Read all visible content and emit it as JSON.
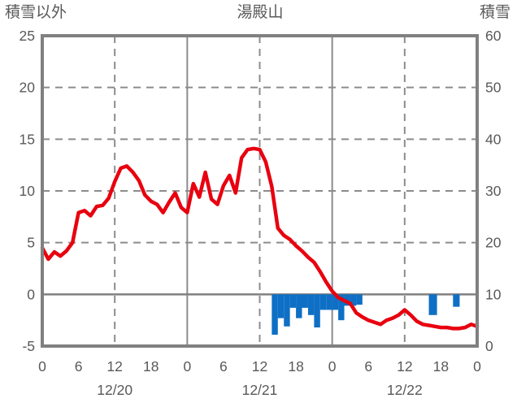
{
  "header": {
    "left_axis_title": "積雪以外",
    "chart_title": "湯殿山",
    "right_axis_title": "積雪"
  },
  "colors": {
    "temp_line": "#e8000f",
    "snow_bar": "#0e6fc5",
    "frame": "#808080",
    "grid": "#8c8c8c",
    "zero_line": "#808080",
    "text": "#595959"
  },
  "chart_data": {
    "type": "line+bar",
    "title": "湯殿山",
    "left_axis": {
      "label": "積雪以外",
      "min": -5,
      "max": 25,
      "ticks": [
        25,
        20,
        15,
        10,
        5,
        0,
        -5
      ]
    },
    "right_axis": {
      "label": "積雪",
      "min": 0,
      "max": 60,
      "ticks": [
        60,
        50,
        40,
        30,
        20,
        10,
        0
      ]
    },
    "x_axis": {
      "total_hours": 72,
      "tick_hours": [
        0,
        6,
        12,
        18,
        24,
        30,
        36,
        42,
        48,
        54,
        60,
        66,
        72
      ],
      "tick_labels": [
        "0",
        "6",
        "12",
        "18",
        "0",
        "6",
        "12",
        "18",
        "0",
        "6",
        "12",
        "18",
        "0"
      ],
      "date_labels": [
        {
          "label": "12/20",
          "hour": 12
        },
        {
          "label": "12/21",
          "hour": 36
        },
        {
          "label": "12/22",
          "hour": 60
        }
      ]
    },
    "grid": {
      "h_dashed_left_values": [
        20,
        15,
        10,
        5
      ],
      "h_solid_left_values": [
        0
      ],
      "v_dashed_hours": [
        12,
        36,
        60
      ],
      "v_solid_hours": [
        24,
        48
      ]
    },
    "series": {
      "temperature_line": {
        "name": "red-line",
        "axis": "left",
        "points": [
          [
            0,
            4.5
          ],
          [
            1,
            3.4
          ],
          [
            2,
            4.1
          ],
          [
            3,
            3.7
          ],
          [
            4,
            4.2
          ],
          [
            5,
            5.0
          ],
          [
            6,
            7.9
          ],
          [
            7,
            8.1
          ],
          [
            8,
            7.6
          ],
          [
            9,
            8.5
          ],
          [
            10,
            8.6
          ],
          [
            11,
            9.3
          ],
          [
            12,
            10.9
          ],
          [
            13,
            12.2
          ],
          [
            14,
            12.4
          ],
          [
            15,
            11.8
          ],
          [
            16,
            11.0
          ],
          [
            17,
            9.6
          ],
          [
            18,
            9.0
          ],
          [
            19,
            8.7
          ],
          [
            20,
            7.9
          ],
          [
            21,
            8.9
          ],
          [
            22,
            9.8
          ],
          [
            23,
            8.4
          ],
          [
            24,
            7.9
          ],
          [
            25,
            10.7
          ],
          [
            26,
            9.4
          ],
          [
            27,
            11.8
          ],
          [
            28,
            9.2
          ],
          [
            29,
            8.7
          ],
          [
            30,
            10.5
          ],
          [
            31,
            11.5
          ],
          [
            32,
            9.8
          ],
          [
            33,
            13.2
          ],
          [
            34,
            14.0
          ],
          [
            35,
            14.1
          ],
          [
            36,
            14.0
          ],
          [
            37,
            12.8
          ],
          [
            38,
            10.4
          ],
          [
            39,
            6.4
          ],
          [
            40,
            5.7
          ],
          [
            41,
            5.3
          ],
          [
            42,
            4.7
          ],
          [
            43,
            4.2
          ],
          [
            44,
            3.6
          ],
          [
            45,
            3.1
          ],
          [
            46,
            2.2
          ],
          [
            47,
            1.2
          ],
          [
            48,
            0.3
          ],
          [
            49,
            -0.3
          ],
          [
            50,
            -0.6
          ],
          [
            51,
            -0.9
          ],
          [
            52,
            -1.8
          ],
          [
            53,
            -2.2
          ],
          [
            54,
            -2.5
          ],
          [
            55,
            -2.7
          ],
          [
            56,
            -2.9
          ],
          [
            57,
            -2.5
          ],
          [
            58,
            -2.3
          ],
          [
            59,
            -2.0
          ],
          [
            60,
            -1.5
          ],
          [
            61,
            -2.0
          ],
          [
            62,
            -2.6
          ],
          [
            63,
            -2.9
          ],
          [
            64,
            -3.0
          ],
          [
            65,
            -3.1
          ],
          [
            66,
            -3.2
          ],
          [
            67,
            -3.2
          ],
          [
            68,
            -3.3
          ],
          [
            69,
            -3.3
          ],
          [
            70,
            -3.2
          ],
          [
            71,
            -2.9
          ],
          [
            72,
            -3.1
          ]
        ]
      },
      "snow_bars": {
        "name": "blue-bars",
        "axis": "left",
        "anchor_value": 0,
        "bars": [
          [
            38,
            -3.9
          ],
          [
            39,
            -2.3
          ],
          [
            40,
            -3.1
          ],
          [
            41,
            -1.3
          ],
          [
            42,
            -2.3
          ],
          [
            43,
            -1.3
          ],
          [
            44,
            -2.0
          ],
          [
            45,
            -3.2
          ],
          [
            46,
            -1.5
          ],
          [
            47,
            -1.5
          ],
          [
            48,
            -1.5
          ],
          [
            49,
            -2.5
          ],
          [
            50,
            -1.1
          ],
          [
            51,
            -1.1
          ],
          [
            52,
            -1.0
          ],
          [
            64,
            -2.0,
            1.35
          ],
          [
            68,
            -1.2,
            1.1
          ]
        ]
      }
    }
  }
}
